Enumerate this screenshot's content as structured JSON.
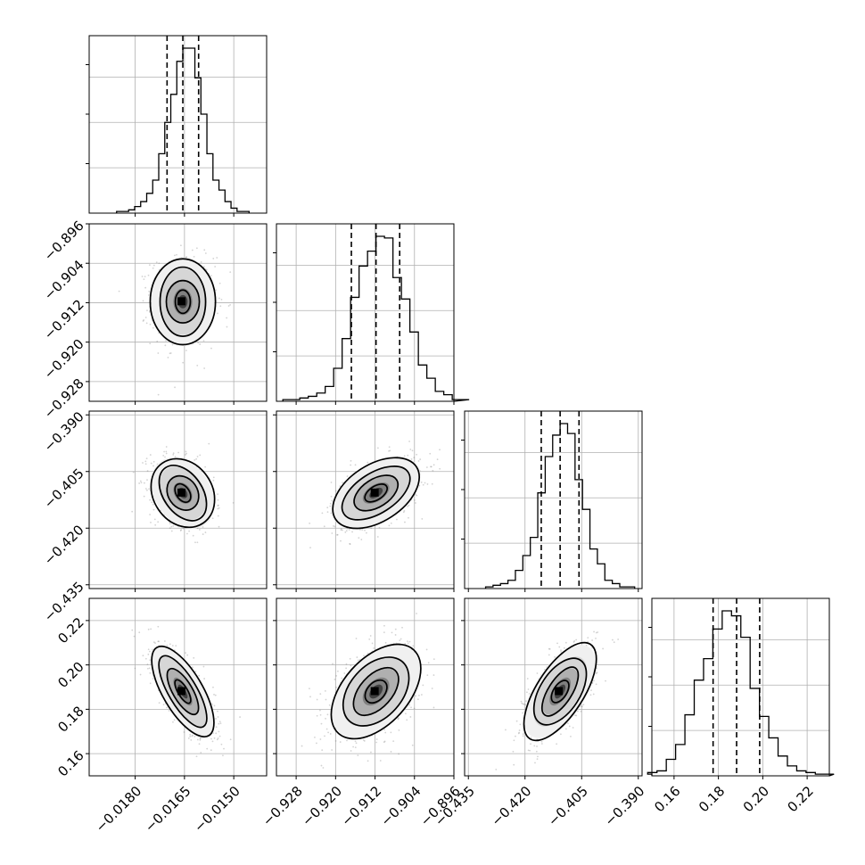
{
  "chart_data": {
    "type": "corner",
    "grid": true,
    "parameters": [
      {
        "index": 0,
        "mean": -0.01655,
        "std": 0.00048,
        "range": [
          -0.0194,
          -0.014
        ],
        "ticks": [
          -0.018,
          -0.0165,
          -0.015
        ],
        "tick_labels": [
          "−0.0180",
          "−0.0165",
          "−0.0150"
        ],
        "quantiles": [
          -0.01703,
          -0.01655,
          -0.01607
        ],
        "hist": [
          1,
          1,
          2,
          4,
          7,
          12,
          20,
          36,
          55,
          72,
          92,
          100,
          100,
          82,
          60,
          36,
          20,
          14,
          7,
          3,
          1,
          1
        ]
      },
      {
        "index": 1,
        "mean": -0.9118,
        "std": 0.0045,
        "range": [
          -0.932,
          -0.896
        ],
        "ticks": [
          -0.928,
          -0.92,
          -0.912,
          -0.904,
          -0.896
        ],
        "tick_labels": [
          "−0.928",
          "−0.920",
          "−0.912",
          "−0.904",
          "−0.896"
        ],
        "quantiles": [
          -0.9168,
          -0.9118,
          -0.907
        ],
        "hist": [
          1,
          1,
          2,
          3,
          5,
          9,
          20,
          38,
          63,
          82,
          91,
          100,
          99,
          75,
          62,
          42,
          22,
          14,
          6,
          4,
          1,
          1
        ]
      },
      {
        "index": 2,
        "mean": -0.4107,
        "std": 0.0047,
        "range": [
          -0.436,
          -0.389
        ],
        "ticks": [
          -0.435,
          -0.42,
          -0.405,
          -0.39
        ],
        "tick_labels": [
          "−0.435",
          "−0.420",
          "−0.405",
          "−0.390"
        ],
        "quantiles": [
          -0.4157,
          -0.4107,
          -0.4057
        ],
        "hist": [
          1,
          2,
          3,
          5,
          11,
          20,
          31,
          58,
          80,
          93,
          100,
          94,
          66,
          48,
          24,
          15,
          5,
          3,
          1,
          1
        ]
      },
      {
        "index": 3,
        "mean": 0.188,
        "std": 0.0105,
        "range": [
          0.15,
          0.23
        ],
        "ticks": [
          0.16,
          0.18,
          0.2,
          0.22
        ],
        "tick_labels": [
          "0.16",
          "0.18",
          "0.20",
          "0.22"
        ],
        "quantiles": [
          0.1776,
          0.1882,
          0.1986
        ],
        "hist": [
          1,
          2,
          3,
          10,
          19,
          37,
          58,
          71,
          89,
          100,
          97,
          84,
          53,
          36,
          23,
          12,
          6,
          3,
          2,
          1,
          1
        ]
      }
    ],
    "correlations": [
      {
        "pair": [
          1,
          0
        ],
        "rho": 0.0
      },
      {
        "pair": [
          2,
          0
        ],
        "rho": -0.3
      },
      {
        "pair": [
          2,
          1
        ],
        "rho": 0.5
      },
      {
        "pair": [
          3,
          0
        ],
        "rho": -0.72
      },
      {
        "pair": [
          3,
          1
        ],
        "rho": 0.45
      },
      {
        "pair": [
          3,
          2
        ],
        "rho": 0.6
      }
    ],
    "contour_levels_sigma": [
      0.5,
      1.0,
      1.5,
      2.0
    ],
    "quantile_levels": [
      0.16,
      0.5,
      0.84
    ]
  }
}
